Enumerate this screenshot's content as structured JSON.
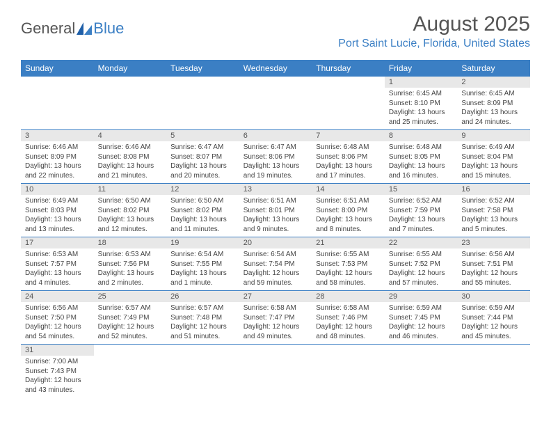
{
  "brand": {
    "part1": "General",
    "part2": "Blue"
  },
  "title": "August 2025",
  "subtitle": "Port Saint Lucie, Florida, United States",
  "colors": {
    "header_bg": "#3b7fc4",
    "header_text": "#ffffff",
    "daynum_bg": "#e8e8e8",
    "text": "#444444",
    "rule": "#3b7fc4"
  },
  "day_names": [
    "Sunday",
    "Monday",
    "Tuesday",
    "Wednesday",
    "Thursday",
    "Friday",
    "Saturday"
  ],
  "weeks": [
    [
      null,
      null,
      null,
      null,
      null,
      {
        "n": "1",
        "sr": "Sunrise: 6:45 AM",
        "ss": "Sunset: 8:10 PM",
        "dl": "Daylight: 13 hours and 25 minutes."
      },
      {
        "n": "2",
        "sr": "Sunrise: 6:45 AM",
        "ss": "Sunset: 8:09 PM",
        "dl": "Daylight: 13 hours and 24 minutes."
      }
    ],
    [
      {
        "n": "3",
        "sr": "Sunrise: 6:46 AM",
        "ss": "Sunset: 8:09 PM",
        "dl": "Daylight: 13 hours and 22 minutes."
      },
      {
        "n": "4",
        "sr": "Sunrise: 6:46 AM",
        "ss": "Sunset: 8:08 PM",
        "dl": "Daylight: 13 hours and 21 minutes."
      },
      {
        "n": "5",
        "sr": "Sunrise: 6:47 AM",
        "ss": "Sunset: 8:07 PM",
        "dl": "Daylight: 13 hours and 20 minutes."
      },
      {
        "n": "6",
        "sr": "Sunrise: 6:47 AM",
        "ss": "Sunset: 8:06 PM",
        "dl": "Daylight: 13 hours and 19 minutes."
      },
      {
        "n": "7",
        "sr": "Sunrise: 6:48 AM",
        "ss": "Sunset: 8:06 PM",
        "dl": "Daylight: 13 hours and 17 minutes."
      },
      {
        "n": "8",
        "sr": "Sunrise: 6:48 AM",
        "ss": "Sunset: 8:05 PM",
        "dl": "Daylight: 13 hours and 16 minutes."
      },
      {
        "n": "9",
        "sr": "Sunrise: 6:49 AM",
        "ss": "Sunset: 8:04 PM",
        "dl": "Daylight: 13 hours and 15 minutes."
      }
    ],
    [
      {
        "n": "10",
        "sr": "Sunrise: 6:49 AM",
        "ss": "Sunset: 8:03 PM",
        "dl": "Daylight: 13 hours and 13 minutes."
      },
      {
        "n": "11",
        "sr": "Sunrise: 6:50 AM",
        "ss": "Sunset: 8:02 PM",
        "dl": "Daylight: 13 hours and 12 minutes."
      },
      {
        "n": "12",
        "sr": "Sunrise: 6:50 AM",
        "ss": "Sunset: 8:02 PM",
        "dl": "Daylight: 13 hours and 11 minutes."
      },
      {
        "n": "13",
        "sr": "Sunrise: 6:51 AM",
        "ss": "Sunset: 8:01 PM",
        "dl": "Daylight: 13 hours and 9 minutes."
      },
      {
        "n": "14",
        "sr": "Sunrise: 6:51 AM",
        "ss": "Sunset: 8:00 PM",
        "dl": "Daylight: 13 hours and 8 minutes."
      },
      {
        "n": "15",
        "sr": "Sunrise: 6:52 AM",
        "ss": "Sunset: 7:59 PM",
        "dl": "Daylight: 13 hours and 7 minutes."
      },
      {
        "n": "16",
        "sr": "Sunrise: 6:52 AM",
        "ss": "Sunset: 7:58 PM",
        "dl": "Daylight: 13 hours and 5 minutes."
      }
    ],
    [
      {
        "n": "17",
        "sr": "Sunrise: 6:53 AM",
        "ss": "Sunset: 7:57 PM",
        "dl": "Daylight: 13 hours and 4 minutes."
      },
      {
        "n": "18",
        "sr": "Sunrise: 6:53 AM",
        "ss": "Sunset: 7:56 PM",
        "dl": "Daylight: 13 hours and 2 minutes."
      },
      {
        "n": "19",
        "sr": "Sunrise: 6:54 AM",
        "ss": "Sunset: 7:55 PM",
        "dl": "Daylight: 13 hours and 1 minute."
      },
      {
        "n": "20",
        "sr": "Sunrise: 6:54 AM",
        "ss": "Sunset: 7:54 PM",
        "dl": "Daylight: 12 hours and 59 minutes."
      },
      {
        "n": "21",
        "sr": "Sunrise: 6:55 AM",
        "ss": "Sunset: 7:53 PM",
        "dl": "Daylight: 12 hours and 58 minutes."
      },
      {
        "n": "22",
        "sr": "Sunrise: 6:55 AM",
        "ss": "Sunset: 7:52 PM",
        "dl": "Daylight: 12 hours and 57 minutes."
      },
      {
        "n": "23",
        "sr": "Sunrise: 6:56 AM",
        "ss": "Sunset: 7:51 PM",
        "dl": "Daylight: 12 hours and 55 minutes."
      }
    ],
    [
      {
        "n": "24",
        "sr": "Sunrise: 6:56 AM",
        "ss": "Sunset: 7:50 PM",
        "dl": "Daylight: 12 hours and 54 minutes."
      },
      {
        "n": "25",
        "sr": "Sunrise: 6:57 AM",
        "ss": "Sunset: 7:49 PM",
        "dl": "Daylight: 12 hours and 52 minutes."
      },
      {
        "n": "26",
        "sr": "Sunrise: 6:57 AM",
        "ss": "Sunset: 7:48 PM",
        "dl": "Daylight: 12 hours and 51 minutes."
      },
      {
        "n": "27",
        "sr": "Sunrise: 6:58 AM",
        "ss": "Sunset: 7:47 PM",
        "dl": "Daylight: 12 hours and 49 minutes."
      },
      {
        "n": "28",
        "sr": "Sunrise: 6:58 AM",
        "ss": "Sunset: 7:46 PM",
        "dl": "Daylight: 12 hours and 48 minutes."
      },
      {
        "n": "29",
        "sr": "Sunrise: 6:59 AM",
        "ss": "Sunset: 7:45 PM",
        "dl": "Daylight: 12 hours and 46 minutes."
      },
      {
        "n": "30",
        "sr": "Sunrise: 6:59 AM",
        "ss": "Sunset: 7:44 PM",
        "dl": "Daylight: 12 hours and 45 minutes."
      }
    ],
    [
      {
        "n": "31",
        "sr": "Sunrise: 7:00 AM",
        "ss": "Sunset: 7:43 PM",
        "dl": "Daylight: 12 hours and 43 minutes."
      },
      null,
      null,
      null,
      null,
      null,
      null
    ]
  ]
}
